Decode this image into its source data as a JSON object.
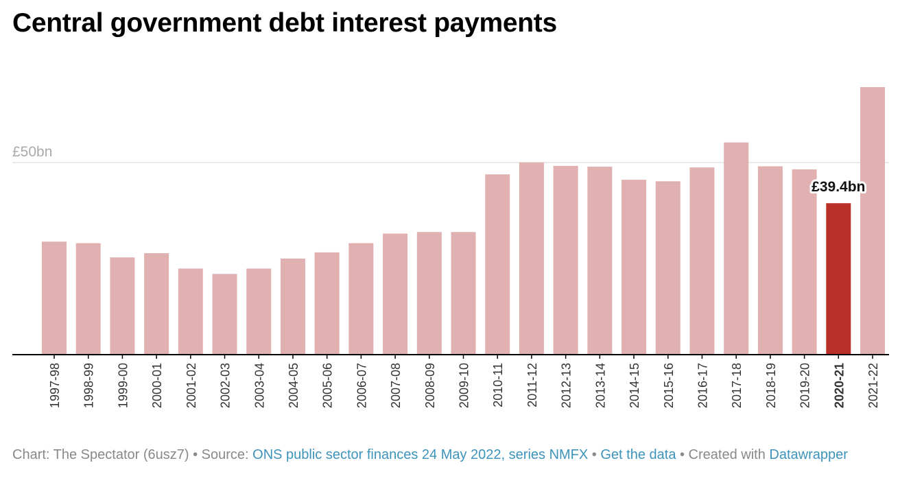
{
  "header": {
    "title": "Central government debt interest payments"
  },
  "chart_data": {
    "type": "bar",
    "title": "Central government debt interest payments",
    "xlabel": "",
    "ylabel": "",
    "y_unit_prefix": "£",
    "y_unit_suffix": "bn",
    "ylim": [
      0,
      69.6
    ],
    "gridlines": [
      50
    ],
    "grid_label": "£50bn",
    "categories": [
      "1997-98",
      "1998-99",
      "1999-00",
      "2000-01",
      "2001-02",
      "2002-03",
      "2003-04",
      "2004-05",
      "2005-06",
      "2006-07",
      "2007-08",
      "2008-09",
      "2009-10",
      "2010-11",
      "2011-12",
      "2012-13",
      "2013-14",
      "2014-15",
      "2015-16",
      "2016-17",
      "2017-18",
      "2018-19",
      "2019-20",
      "2020-21",
      "2021-22"
    ],
    "values": [
      29.4,
      29.0,
      25.3,
      26.4,
      22.4,
      21.0,
      22.4,
      25.0,
      26.6,
      29.0,
      31.5,
      31.9,
      31.9,
      46.9,
      50.0,
      49.1,
      48.9,
      45.5,
      45.1,
      48.7,
      55.2,
      49.0,
      48.2,
      39.4,
      69.6
    ],
    "highlight_index": 23,
    "highlight_label": "£39.4bn",
    "colors": {
      "bar": "#e0b1b0",
      "highlight": "#b93028",
      "grid": "#e2e2e2",
      "axis": "#000000",
      "grid_label": "#aaaaaa"
    }
  },
  "footer": {
    "prefix": "Chart: The Spectator (6usz7) • Source: ",
    "source_link": "ONS public sector finances 24 May 2022, series NMFX",
    "sep": " • ",
    "data_link": "Get the data",
    "created": " • Created with ",
    "tool_link": "Datawrapper"
  }
}
